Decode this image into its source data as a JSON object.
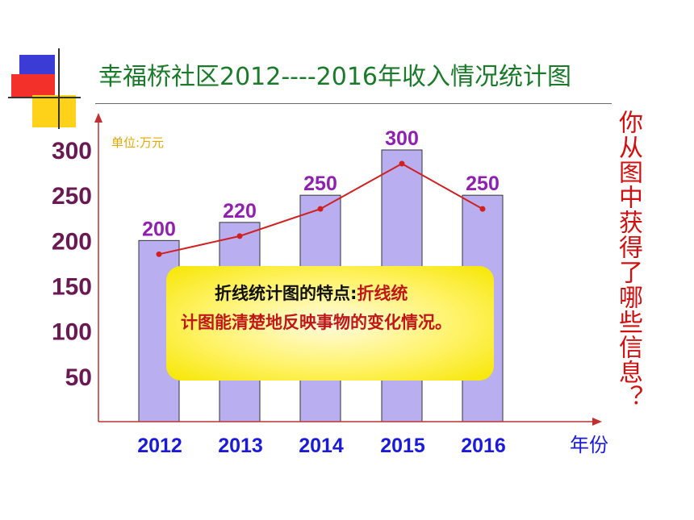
{
  "title": "幸福桥社区2012----2016年收入情况统计图",
  "unit_label": "单位:万元",
  "x_unit_label": "年份",
  "side_question": "你从图中获得了哪些信息？",
  "callout": {
    "heading": "折线统计图的特点:",
    "body_inline": "折线统",
    "body_rest": "计图能清楚地反映事物的变化情况。"
  },
  "colors": {
    "bar_fill": "#b8aef0",
    "line": "#d02020",
    "title": "#1a7a2a",
    "y_labels": "#6a1a52",
    "x_labels": "#1a1ad8",
    "data_labels": "#9020b0"
  },
  "chart_data": {
    "type": "bar",
    "overlay": "line",
    "categories": [
      "2012",
      "2013",
      "2014",
      "2015",
      "2016"
    ],
    "values": [
      200,
      220,
      250,
      300,
      250
    ],
    "data_labels": [
      "200",
      "220",
      "250",
      "300",
      "250"
    ],
    "y_ticks": [
      "50",
      "100",
      "150",
      "200",
      "250",
      "300"
    ],
    "ylim": [
      0,
      300
    ],
    "xlabel": "年份",
    "ylabel": "单位:万元",
    "title": "幸福桥社区2012----2016年收入情况统计图",
    "grid": false
  }
}
